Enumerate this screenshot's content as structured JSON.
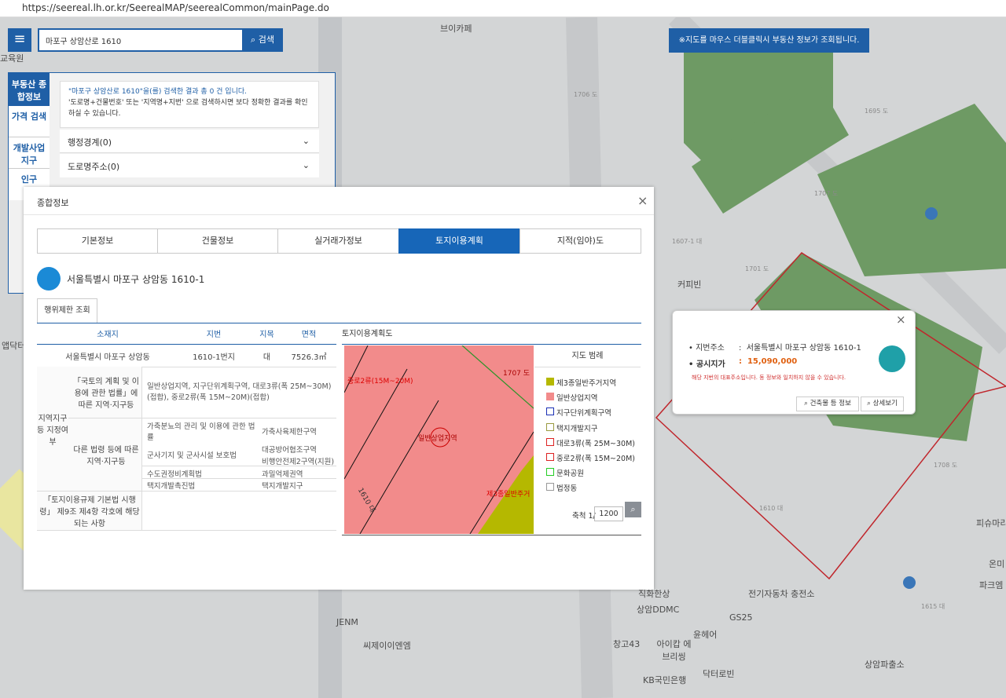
{
  "browser": {
    "url": "https://seereal.lh.or.kr/SeerealMAP/seerealCommon/mainPage.do"
  },
  "search": {
    "query": "마포구 상암산로 1610",
    "button": "검색"
  },
  "notice": "※지도를 마우스 더블클릭시 부동산 정보가 조회됩니다.",
  "side_tabs": [
    "부동산 종합정보",
    "가격 검색",
    "개발사업 지구",
    "인구"
  ],
  "search_result": {
    "message": "\"마포구 상암산로 1610\"을(를) 검색한 결과 총 0 건 입니다.",
    "hint": "'도로명+건물번호' 또는 '지역명+지번' 으로 검색하시면 보다 정확한 결과를 확인하실 수 있습니다.",
    "sections": [
      "행정경계(0)",
      "도로명주소(0)"
    ]
  },
  "map_labels": [
    "브이카페",
    "커피빈",
    "씨제이이엔엠",
    "창고43",
    "윤헤어",
    "아이캅 에브리씽",
    "KB국민은행",
    "닥터로빈",
    "상암DDMC",
    "전기자동차 충전소",
    "GS25",
    "상암파출소",
    "파크엠",
    "피슈마리",
    "온미",
    "직화한상",
    "1706 도",
    "1695 도",
    "1707 도",
    "1607-1 대",
    "1701 도",
    "1708 도",
    "1610 대",
    "1615 대",
    "앱닥터",
    "교육원",
    "JENM"
  ],
  "modal": {
    "title": "종합정보",
    "tabs": [
      "기본정보",
      "건물정보",
      "실거래가정보",
      "토지이용계획",
      "지적(임야)도"
    ],
    "address": "서울특별시 마포구 상암동 1610-1",
    "subtab": "행위제한 조회",
    "table": {
      "headers": [
        "소재지",
        "지번",
        "지목",
        "면적"
      ],
      "row": [
        "서울특별시 마포구 상암동",
        "1610-1번지",
        "대",
        "7526.3㎡"
      ],
      "designation_head": "지역지구등 지정여부",
      "national_head": "「국토의 계획 및 이용에 관한 법률」에 따른 지역·지구등",
      "national_value": "일반상업지역, 지구단위계획구역, 대로3류(폭 25M~30M)(접합), 중로2류(폭 15M~20M)(접합)",
      "other_head": "다른 법령 등에 따른 지역·지구등",
      "other_rows": [
        [
          "가축분뇨의 관리 및 이용에 관한 법률",
          "가축사육제한구역"
        ],
        [
          "군사기지 및 군사시설 보호법",
          "대공방어협조구역"
        ],
        [
          "비행안전제2구역(지원)"
        ],
        [
          "수도권정비계획법",
          "과밀억제권역"
        ],
        [
          "택지개발촉진법",
          "택지개발지구"
        ]
      ],
      "decree_head": "「토지이용규제 기본법 시행령」 제9조 제4항 각호에 해당되는 사항"
    },
    "plan": {
      "title": "토지이용계획도",
      "map_labels": [
        "일반상업지역",
        "제3종일반주거",
        "1610 대",
        "1707 도",
        "중로2류(15M~20M)"
      ],
      "legend_title": "지도 범례",
      "legend": [
        "제3종일반주거지역",
        "일반상업지역",
        "지구단위계획구역",
        "택지개발지구",
        "대로3류(폭 25M~30M)",
        "중로2류(폭 15M~20M)",
        "문화공원",
        "법정동"
      ],
      "scale_label": "축척 1/",
      "scale": "1200"
    }
  },
  "popup": {
    "labels": [
      "지번주소",
      "공시지가"
    ],
    "address": "서울특별시 마포구 상암동 1610-1",
    "price": "15,090,000",
    "note": "해당 지번의 대표주소입니다. 동 정보와 일치하지 않을 수 있습니다.",
    "buttons": [
      "건축물 등 정보",
      "상세보기"
    ]
  }
}
